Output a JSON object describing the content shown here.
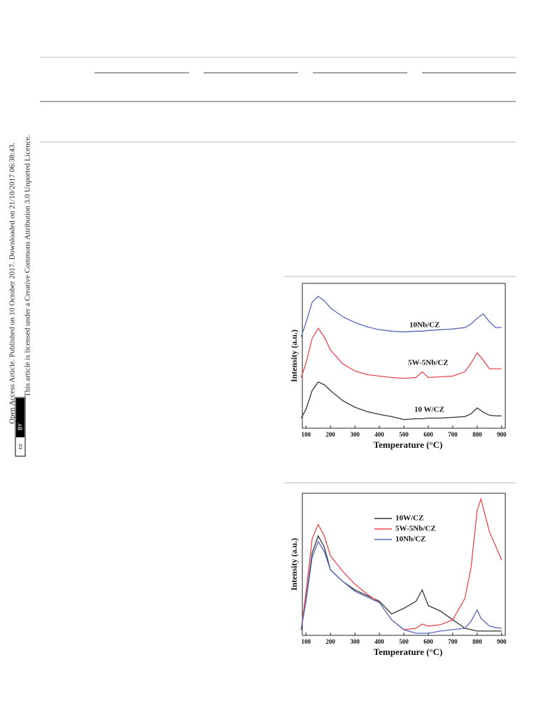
{
  "sidebar": {
    "line1": "Open Access Article. Published on 10 October 2017. Downloaded on 21/10/2017 06:38:43.",
    "line2": "This article is licensed under a Creative Commons Attribution 3.0 Unported Licence.",
    "badge_cc": "cc",
    "badge_by": "BY"
  },
  "chart_data": [
    {
      "type": "line",
      "xlabel": "Temperature (°C)",
      "ylabel": "Intensity (a.u.)",
      "x": [
        80,
        100,
        125,
        150,
        175,
        200,
        250,
        300,
        350,
        400,
        450,
        500,
        550,
        575,
        600,
        650,
        700,
        750,
        775,
        800,
        825,
        850,
        875,
        900
      ],
      "xlim": [
        85,
        915
      ],
      "xticks": [
        100,
        200,
        300,
        400,
        500,
        600,
        700,
        800,
        900
      ],
      "ylim": [
        0,
        10
      ],
      "series": [
        {
          "name": "10 W/CZ",
          "color": "#333333",
          "values": [
            0.7,
            1.3,
            2.6,
            3.2,
            3.0,
            2.6,
            1.9,
            1.45,
            1.15,
            0.95,
            0.8,
            0.6,
            0.65,
            0.65,
            0.7,
            0.7,
            0.75,
            0.8,
            1.0,
            1.4,
            1.1,
            0.9,
            0.85,
            0.85
          ]
        },
        {
          "name": "5W-5Nb/CZ",
          "color": "#e8474f",
          "values": [
            3.5,
            4.5,
            6.2,
            6.9,
            6.3,
            5.4,
            4.45,
            3.95,
            3.7,
            3.6,
            3.5,
            3.45,
            3.5,
            3.9,
            3.5,
            3.55,
            3.6,
            3.9,
            4.5,
            5.2,
            4.7,
            4.1,
            4.1,
            4.1
          ]
        },
        {
          "name": "10Nb/CZ",
          "color": "#5566bb",
          "values": [
            6.3,
            7.3,
            8.7,
            9.1,
            8.8,
            8.3,
            7.7,
            7.3,
            7.0,
            6.8,
            6.7,
            6.65,
            6.7,
            6.7,
            6.75,
            6.8,
            6.85,
            6.95,
            7.2,
            7.6,
            7.9,
            7.35,
            6.95,
            6.95
          ]
        }
      ]
    },
    {
      "type": "line",
      "xlabel": "Temperature (°C)",
      "ylabel": "Intensity (a.u.)",
      "legend": true,
      "x": [
        80,
        100,
        125,
        150,
        175,
        200,
        250,
        300,
        350,
        400,
        450,
        500,
        550,
        575,
        600,
        650,
        700,
        750,
        775,
        800,
        815,
        850,
        875,
        900
      ],
      "xlim": [
        85,
        915
      ],
      "xticks": [
        100,
        200,
        300,
        400,
        500,
        600,
        700,
        800,
        900
      ],
      "ylim": [
        0,
        10
      ],
      "series": [
        {
          "name": "10W/CZ",
          "color": "#333333",
          "values": [
            0.4,
            2.5,
            5.8,
            7.0,
            6.2,
            4.6,
            3.8,
            3.2,
            2.8,
            2.4,
            1.5,
            1.9,
            2.4,
            3.2,
            2.1,
            1.7,
            1.1,
            0.5,
            0.4,
            0.3,
            0.3,
            0.3,
            0.3,
            0.3
          ]
        },
        {
          "name": "5W-5Nb/CZ",
          "color": "#e8474f",
          "values": [
            0.4,
            3.0,
            6.8,
            7.8,
            7.0,
            5.6,
            4.5,
            3.6,
            2.9,
            2.3,
            1.1,
            0.4,
            0.5,
            0.8,
            0.65,
            0.75,
            1.1,
            2.6,
            4.8,
            8.8,
            9.6,
            7.3,
            6.3,
            5.3
          ]
        },
        {
          "name": "10Nb/CZ",
          "color": "#5566bb",
          "values": [
            0.4,
            2.4,
            5.5,
            6.6,
            5.9,
            4.6,
            3.8,
            3.1,
            2.7,
            2.3,
            1.1,
            0.4,
            0.15,
            0.15,
            0.15,
            0.3,
            0.4,
            0.5,
            1.0,
            1.8,
            1.2,
            0.65,
            0.55,
            0.5
          ]
        }
      ]
    }
  ]
}
